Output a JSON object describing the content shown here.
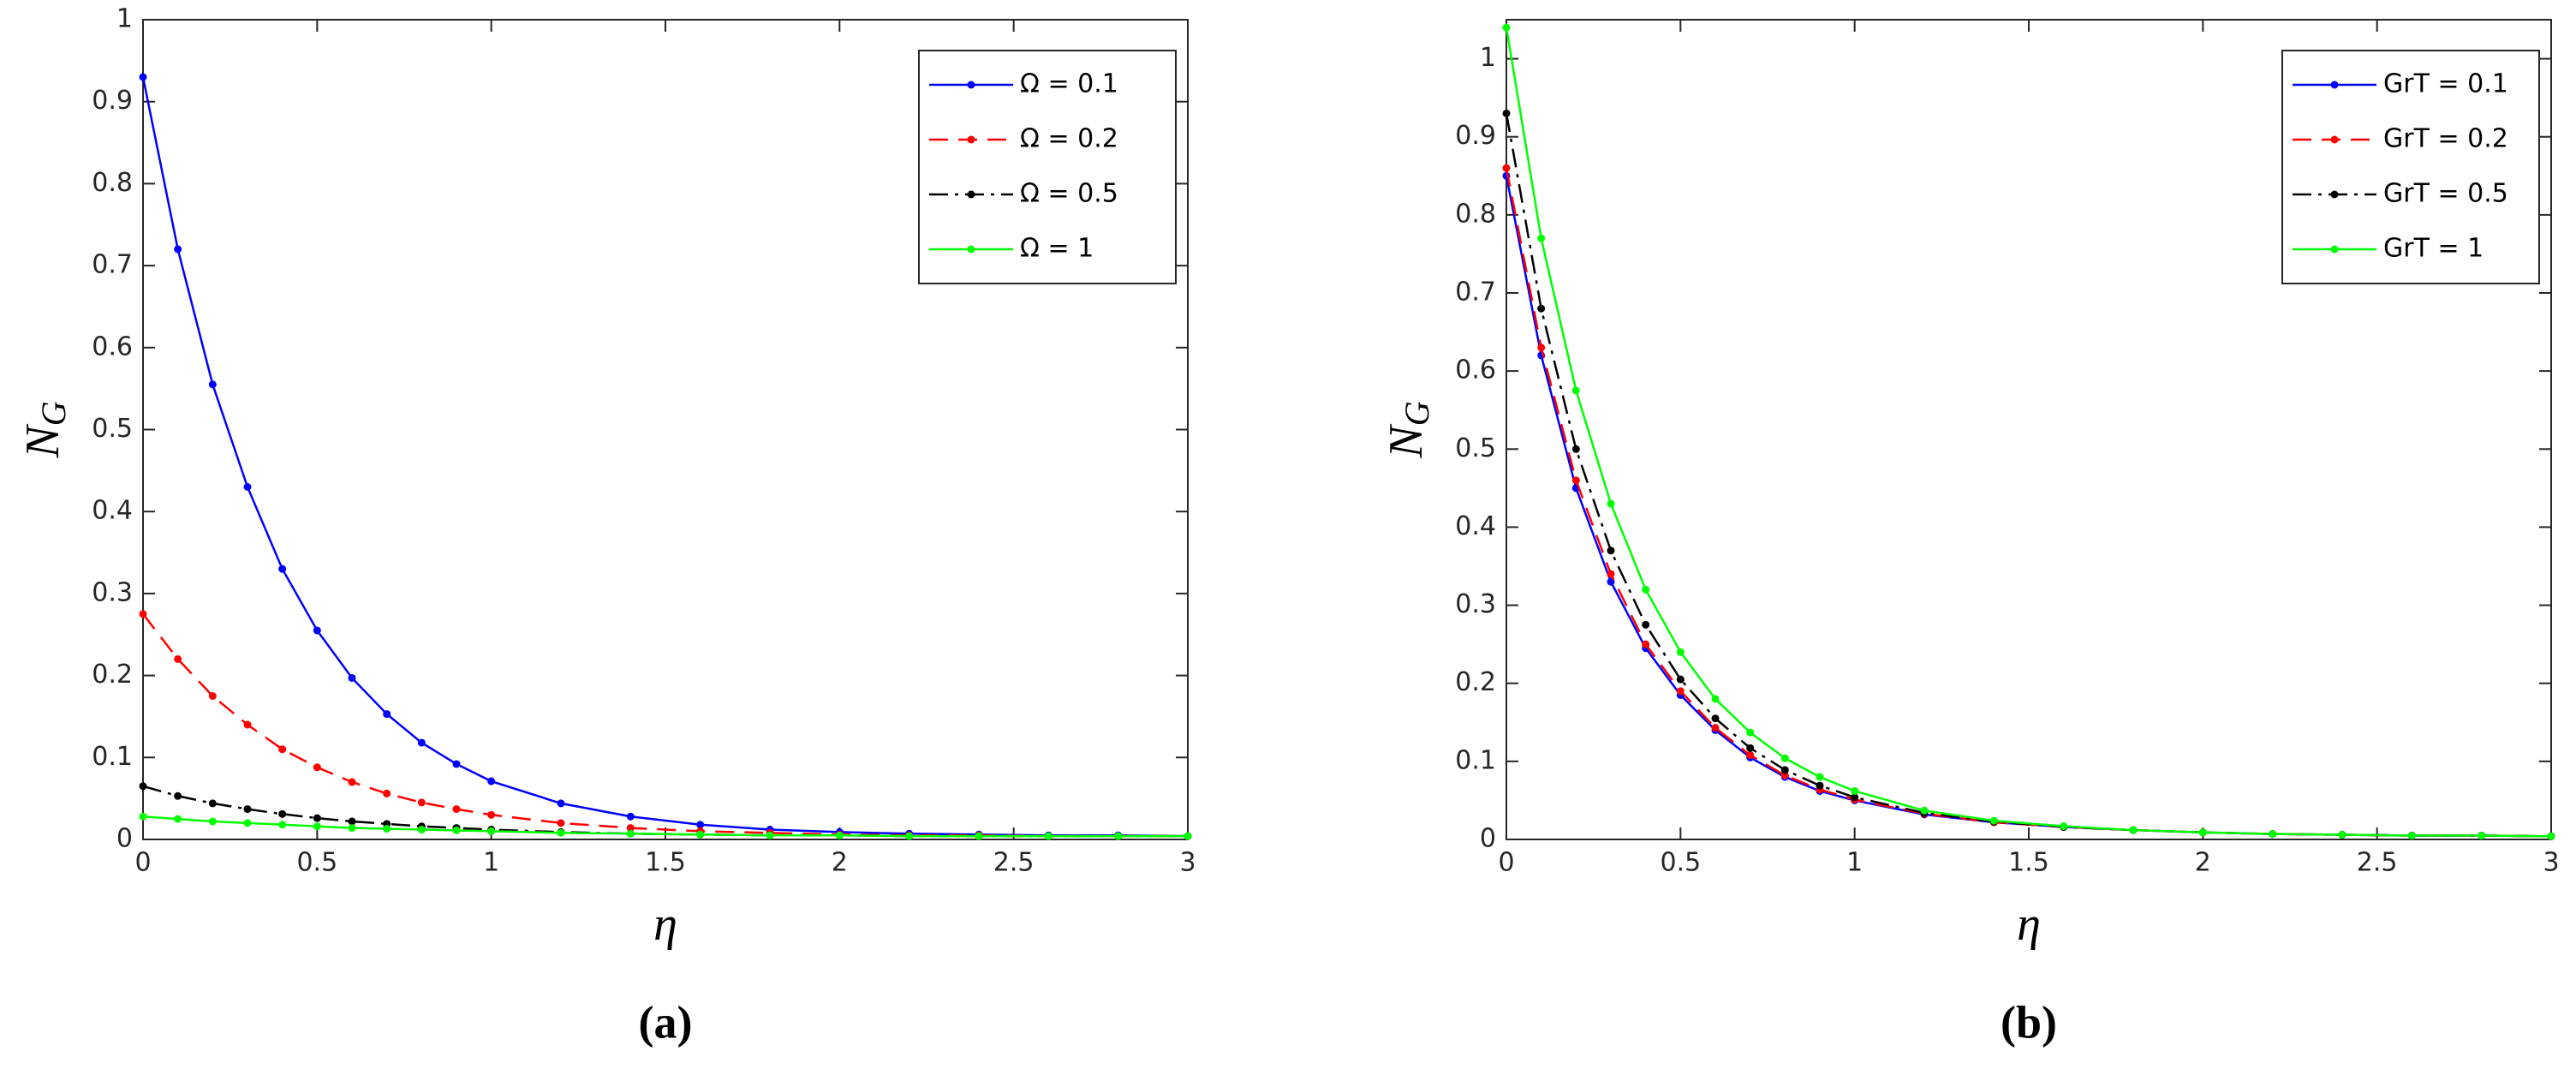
{
  "chart_data": [
    {
      "type": "line",
      "caption": "(a)",
      "xlabel": "η",
      "ylabel": "N",
      "ylabel_sub": "G",
      "x": [
        0,
        0.1,
        0.2,
        0.3,
        0.4,
        0.5,
        0.6,
        0.7,
        0.8,
        0.9,
        1,
        1.2,
        1.4,
        1.6,
        1.8,
        2,
        2.2,
        2.4,
        2.6,
        2.8,
        3
      ],
      "xlim": [
        0,
        3
      ],
      "xticks": [
        0,
        0.5,
        1,
        1.5,
        2,
        2.5,
        3
      ],
      "ylim": [
        0,
        1
      ],
      "yticks": [
        0,
        0.1,
        0.2,
        0.3,
        0.4,
        0.5,
        0.6,
        0.7,
        0.8,
        0.9,
        1
      ],
      "legend": "northeast",
      "series": [
        {
          "name": "Ω =  0.1",
          "color": "#0000ff",
          "dash": "solid",
          "values": [
            0.93,
            0.72,
            0.555,
            0.43,
            0.33,
            0.255,
            0.197,
            0.153,
            0.118,
            0.092,
            0.071,
            0.044,
            0.028,
            0.018,
            0.012,
            0.009,
            0.007,
            0.006,
            0.005,
            0.005,
            0.004
          ]
        },
        {
          "name": "Ω =  0.2",
          "color": "#ff0000",
          "dash": "dashed",
          "values": [
            0.275,
            0.22,
            0.175,
            0.14,
            0.11,
            0.088,
            0.07,
            0.056,
            0.045,
            0.037,
            0.03,
            0.02,
            0.014,
            0.01,
            0.008,
            0.006,
            0.005,
            0.005,
            0.004,
            0.004,
            0.004
          ]
        },
        {
          "name": "Ω =  0.5",
          "color": "#000000",
          "dash": "dashdot",
          "values": [
            0.065,
            0.053,
            0.044,
            0.037,
            0.031,
            0.026,
            0.022,
            0.019,
            0.016,
            0.014,
            0.012,
            0.009,
            0.007,
            0.006,
            0.005,
            0.005,
            0.004,
            0.004,
            0.004,
            0.004,
            0.004
          ]
        },
        {
          "name": "Ω =    1",
          "color": "#00ff00",
          "dash": "solid",
          "values": [
            0.028,
            0.025,
            0.022,
            0.02,
            0.018,
            0.016,
            0.014,
            0.013,
            0.012,
            0.011,
            0.01,
            0.008,
            0.007,
            0.006,
            0.005,
            0.005,
            0.004,
            0.004,
            0.004,
            0.004,
            0.004
          ]
        }
      ]
    },
    {
      "type": "line",
      "caption": "(b)",
      "xlabel": "η",
      "ylabel": "N",
      "ylabel_sub": "G",
      "x": [
        0,
        0.1,
        0.2,
        0.3,
        0.4,
        0.5,
        0.6,
        0.7,
        0.8,
        0.9,
        1,
        1.2,
        1.4,
        1.6,
        1.8,
        2,
        2.2,
        2.4,
        2.6,
        2.8,
        3
      ],
      "xlim": [
        0,
        3
      ],
      "xticks": [
        0,
        0.5,
        1,
        1.5,
        2,
        2.5,
        3
      ],
      "ylim": [
        0,
        1.05
      ],
      "yticks": [
        0,
        0.1,
        0.2,
        0.3,
        0.4,
        0.5,
        0.6,
        0.7,
        0.8,
        0.9,
        1
      ],
      "legend": "northeast",
      "series": [
        {
          "name": "GrT =  0.1",
          "color": "#0000ff",
          "dash": "solid",
          "values": [
            0.85,
            0.62,
            0.45,
            0.33,
            0.245,
            0.185,
            0.14,
            0.105,
            0.08,
            0.062,
            0.05,
            0.032,
            0.022,
            0.016,
            0.012,
            0.009,
            0.007,
            0.006,
            0.005,
            0.005,
            0.004
          ]
        },
        {
          "name": "GrT =  0.2",
          "color": "#ff0000",
          "dash": "dashed",
          "values": [
            0.86,
            0.63,
            0.46,
            0.34,
            0.25,
            0.19,
            0.143,
            0.108,
            0.082,
            0.064,
            0.051,
            0.033,
            0.022,
            0.016,
            0.012,
            0.009,
            0.007,
            0.006,
            0.005,
            0.005,
            0.004
          ]
        },
        {
          "name": "GrT =  0.5",
          "color": "#000000",
          "dash": "dashdot",
          "values": [
            0.93,
            0.68,
            0.5,
            0.37,
            0.275,
            0.205,
            0.155,
            0.117,
            0.089,
            0.069,
            0.054,
            0.034,
            0.023,
            0.016,
            0.012,
            0.009,
            0.007,
            0.006,
            0.005,
            0.005,
            0.004
          ]
        },
        {
          "name": "GrT =    1",
          "color": "#00ff00",
          "dash": "solid",
          "values": [
            1.04,
            0.77,
            0.575,
            0.43,
            0.32,
            0.24,
            0.18,
            0.137,
            0.104,
            0.08,
            0.062,
            0.037,
            0.024,
            0.017,
            0.012,
            0.009,
            0.007,
            0.006,
            0.005,
            0.005,
            0.004
          ]
        }
      ]
    }
  ]
}
